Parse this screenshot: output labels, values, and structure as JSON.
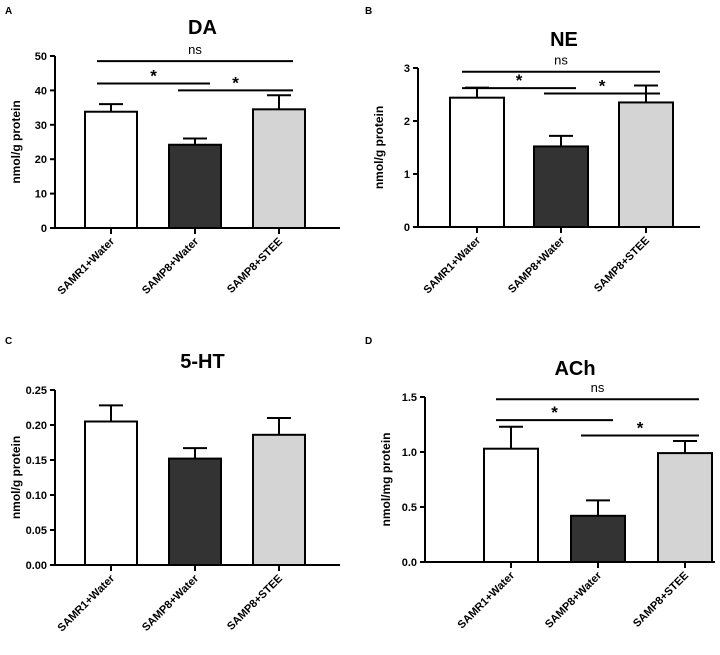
{
  "chart_data": [
    {
      "panel_label": "A",
      "type": "bar",
      "title": "DA",
      "ylabel": "nmol/g protein",
      "categories": [
        "SAMR1+Water",
        "SAMP8+Water",
        "SAMP8+STEE"
      ],
      "values": [
        33.8,
        24.2,
        34.5
      ],
      "error_upper": [
        36.0,
        26.0,
        38.6
      ],
      "ylim": [
        0,
        50
      ],
      "yticks": [
        "0",
        "10",
        "20",
        "30",
        "40",
        "50"
      ],
      "bar_colors": [
        "#ffffff",
        "#333333",
        "#d4d4d4"
      ],
      "significance": [
        {
          "from": 0,
          "to": 2,
          "label": "ns"
        },
        {
          "from": 0,
          "to": 1,
          "label": "*"
        },
        {
          "from": 1,
          "to": 2,
          "label": "*"
        }
      ]
    },
    {
      "panel_label": "B",
      "type": "bar",
      "title": "NE",
      "ylabel": "nmol/g protein",
      "categories": [
        "SAMR1+Water",
        "SAMP8+Water",
        "SAMP8+STEE"
      ],
      "values": [
        2.44,
        1.52,
        2.35
      ],
      "error_upper": [
        2.63,
        1.72,
        2.67
      ],
      "ylim": [
        0,
        3
      ],
      "yticks": [
        "0",
        "1",
        "2",
        "3"
      ],
      "bar_colors": [
        "#ffffff",
        "#333333",
        "#d4d4d4"
      ],
      "significance": [
        {
          "from": 0,
          "to": 2,
          "label": "ns"
        },
        {
          "from": 0,
          "to": 1,
          "label": "*"
        },
        {
          "from": 1,
          "to": 2,
          "label": "*"
        }
      ]
    },
    {
      "panel_label": "C",
      "type": "bar",
      "title": "5-HT",
      "ylabel": "nmol/g protein",
      "categories": [
        "SAMR1+Water",
        "SAMP8+Water",
        "SAMP8+STEE"
      ],
      "values": [
        0.205,
        0.152,
        0.186
      ],
      "error_upper": [
        0.228,
        0.167,
        0.21
      ],
      "ylim": [
        0,
        0.25
      ],
      "yticks": [
        "0.00",
        "0.05",
        "0.10",
        "0.15",
        "0.20",
        "0.25"
      ],
      "bar_colors": [
        "#ffffff",
        "#333333",
        "#d4d4d4"
      ],
      "significance": []
    },
    {
      "panel_label": "D",
      "type": "bar",
      "title": "ACh",
      "ylabel": "nmol/mg protein",
      "categories": [
        "SAMR1+Water",
        "SAMP8+Water",
        "SAMP8+STEE"
      ],
      "values": [
        1.03,
        0.42,
        0.99
      ],
      "error_upper": [
        1.23,
        0.56,
        1.1
      ],
      "ylim": [
        0,
        1.5
      ],
      "yticks": [
        "0.0",
        "0.5",
        "1.0",
        "1.5"
      ],
      "bar_colors": [
        "#ffffff",
        "#333333",
        "#d4d4d4"
      ],
      "significance": [
        {
          "from": 0,
          "to": 2,
          "label": "ns"
        },
        {
          "from": 0,
          "to": 1,
          "label": "*"
        },
        {
          "from": 1,
          "to": 2,
          "label": "*"
        }
      ]
    }
  ]
}
